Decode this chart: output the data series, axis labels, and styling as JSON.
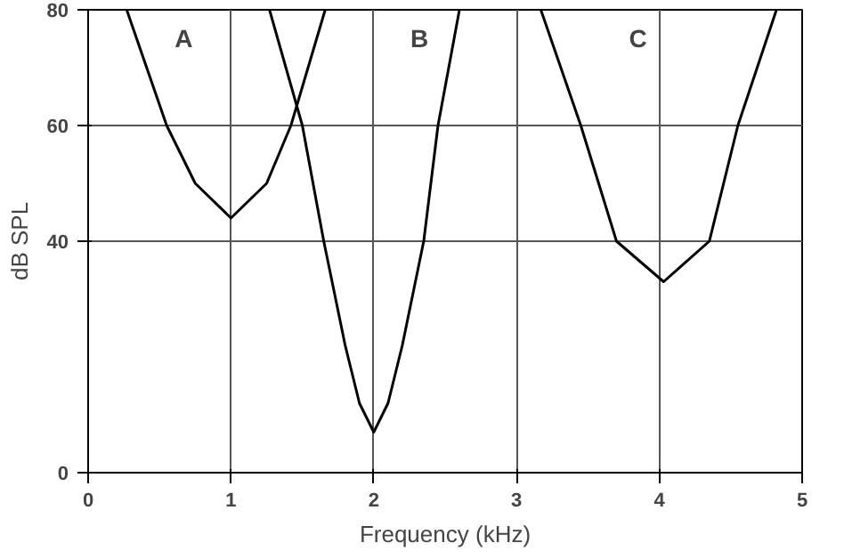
{
  "chart_data": {
    "type": "line",
    "xlabel": "Frequency (kHz)",
    "ylabel": "dB SPL",
    "xlim": [
      0,
      5
    ],
    "ylim": [
      0,
      80
    ],
    "xticks": [
      0,
      1,
      2,
      3,
      4,
      5
    ],
    "yticks": [
      0,
      40,
      60,
      80
    ],
    "grid": true,
    "marker": "none",
    "line_style": "solid",
    "series": [
      {
        "color": "#000000",
        "x": [
          0.27,
          0.55,
          0.75,
          1.0,
          1.25,
          1.42,
          1.66
        ],
        "values": [
          80,
          60,
          50,
          44,
          50,
          60,
          80
        ]
      },
      {
        "color": "#000000",
        "x": [
          1.27,
          1.5,
          1.65,
          1.8,
          1.9,
          2.0,
          2.1,
          2.2,
          2.35,
          2.45,
          2.6
        ],
        "values": [
          80,
          60,
          40,
          22,
          12,
          7,
          12,
          22,
          40,
          60,
          80
        ]
      },
      {
        "color": "#000000",
        "x": [
          3.17,
          3.45,
          3.7,
          4.03,
          4.35,
          4.55,
          4.82
        ],
        "values": [
          80,
          60,
          40,
          33,
          40,
          60,
          80
        ]
      }
    ],
    "annotations": [
      "A",
      "B",
      "C"
    ]
  }
}
